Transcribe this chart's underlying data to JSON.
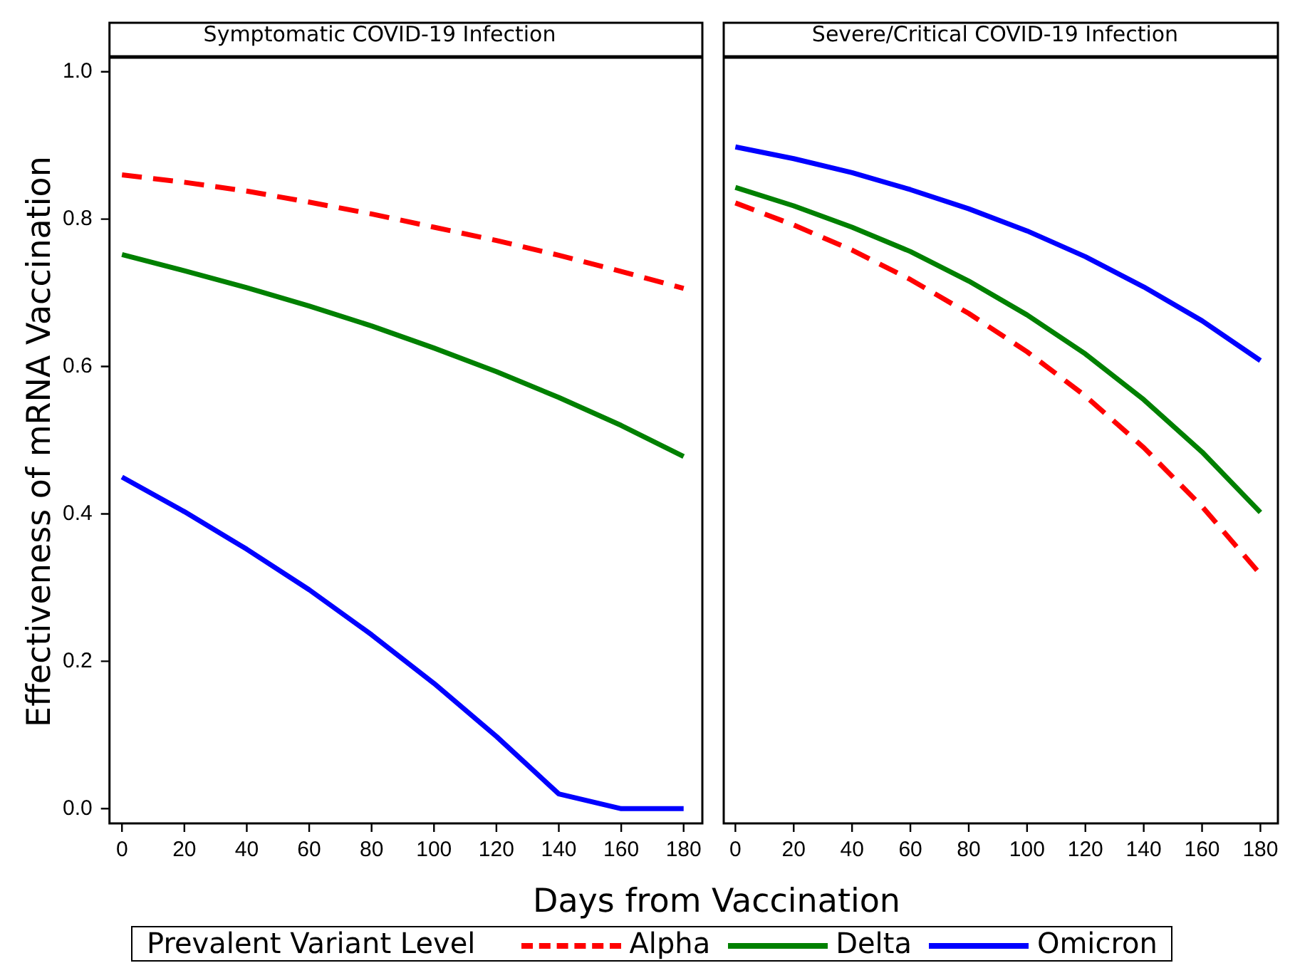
{
  "chart_data": [
    {
      "type": "line",
      "title": "Symptomatic COVID-19 Infection",
      "ylabel": "Effectiveness of mRNA Vaccination",
      "xlabel": "Days from Vaccination",
      "legend_title": "Prevalent Variant Level",
      "legend": "bottom",
      "grid": false,
      "x": [
        0,
        20,
        40,
        60,
        80,
        100,
        120,
        140,
        160,
        180
      ],
      "xlim": [
        -4,
        186
      ],
      "xticks": [
        0,
        20,
        40,
        60,
        80,
        100,
        120,
        140,
        160,
        180
      ],
      "ylim": [
        -0.02,
        1.02
      ],
      "yticks": [
        {
          "value": 0,
          "label": "0.0"
        },
        0.2,
        0.4,
        0.6,
        0.8,
        {
          "value": 1,
          "label": "1.0"
        }
      ],
      "series": [
        {
          "name": "Alpha",
          "color": "#ff0000",
          "line_style": "dashed",
          "values": [
            0.86,
            0.85,
            0.838,
            0.823,
            0.807,
            0.789,
            0.771,
            0.751,
            0.729,
            0.706
          ]
        },
        {
          "name": "Delta",
          "color": "#008000",
          "line_style": "solid",
          "values": [
            0.752,
            0.73,
            0.707,
            0.682,
            0.655,
            0.625,
            0.593,
            0.558,
            0.52,
            0.478
          ]
        },
        {
          "name": "Omicron",
          "color": "#0000ff",
          "line_style": "solid",
          "values": [
            0.45,
            0.403,
            0.352,
            0.297,
            0.236,
            0.17,
            0.098,
            0.02,
            0,
            0
          ]
        }
      ]
    },
    {
      "type": "line",
      "title": "Severe/Critical COVID-19 Infection",
      "grid": false,
      "tick_labels": "x",
      "x": [
        0,
        20,
        40,
        60,
        80,
        100,
        120,
        140,
        160,
        180
      ],
      "xlim": [
        -4,
        186
      ],
      "xticks": [
        0,
        20,
        40,
        60,
        80,
        100,
        120,
        140,
        160,
        180
      ],
      "ylim": [
        -0.02,
        1.02
      ],
      "series": [
        {
          "color": "#ff0000",
          "line_style": "dashed",
          "values": [
            0.822,
            0.792,
            0.758,
            0.718,
            0.672,
            0.62,
            0.56,
            0.49,
            0.41,
            0.318
          ]
        },
        {
          "color": "#008000",
          "line_style": "solid",
          "values": [
            0.843,
            0.818,
            0.789,
            0.756,
            0.716,
            0.67,
            0.617,
            0.555,
            0.484,
            0.402
          ]
        },
        {
          "color": "#0000ff",
          "line_style": "solid",
          "values": [
            0.898,
            0.882,
            0.863,
            0.84,
            0.814,
            0.784,
            0.749,
            0.708,
            0.662,
            0.608
          ]
        }
      ]
    }
  ]
}
